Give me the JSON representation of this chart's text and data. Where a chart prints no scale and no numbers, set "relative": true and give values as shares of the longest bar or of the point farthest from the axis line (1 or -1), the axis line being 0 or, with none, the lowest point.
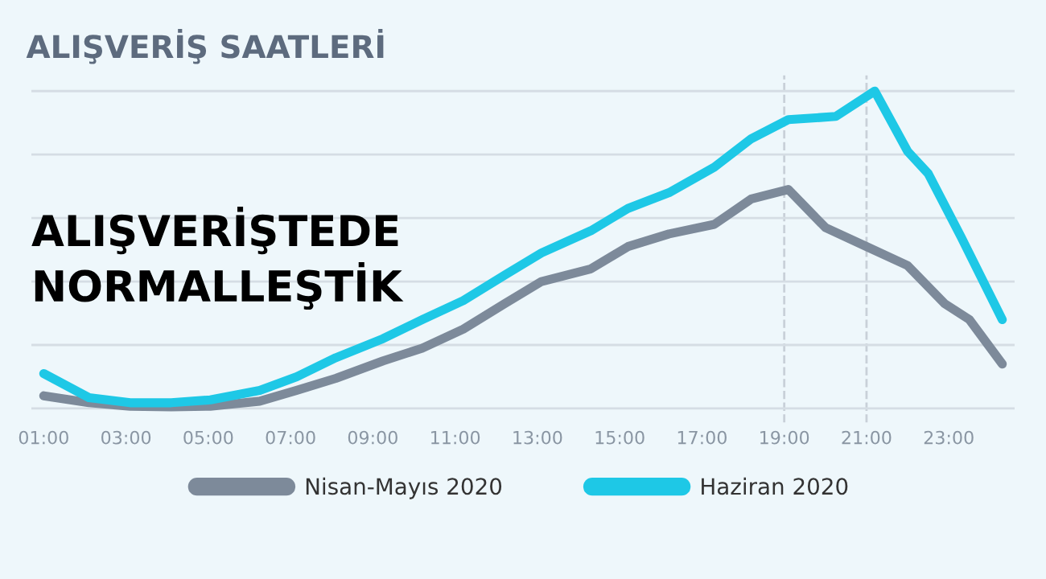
{
  "chart_data": {
    "type": "line",
    "title": "ALIŞVERİŞ SAATLERİ",
    "relative": true,
    "x": [
      1.0,
      2.1,
      3.1,
      4.1,
      5.05,
      6.25,
      7.15,
      8.1,
      9.25,
      10.2,
      11.2,
      12.2,
      13.1,
      14.3,
      15.2,
      16.2,
      17.3,
      18.2,
      19.1,
      20.25,
      21.2,
      22.0,
      22.5,
      23.3,
      24.3
    ],
    "series": [
      {
        "name": "Nisan-Mayıs 2020",
        "color": "#7d8a9a",
        "x": [
          1.0,
          2.1,
          3.1,
          4.1,
          5.05,
          6.25,
          7.15,
          8.1,
          9.25,
          10.2,
          11.2,
          12.2,
          13.1,
          14.3,
          15.2,
          16.2,
          17.3,
          18.2,
          19.1,
          20.0,
          21.0,
          22.0,
          22.9,
          23.5,
          24.3
        ],
        "values": [
          0.04,
          0.018,
          0.007,
          0.005,
          0.007,
          0.023,
          0.057,
          0.095,
          0.15,
          0.19,
          0.25,
          0.33,
          0.4,
          0.44,
          0.51,
          0.55,
          0.58,
          0.66,
          0.69,
          0.57,
          0.51,
          0.45,
          0.33,
          0.28,
          0.14
        ]
      },
      {
        "name": "Haziran 2020",
        "color": "#1ec8e6",
        "values": [
          0.11,
          0.034,
          0.018,
          0.018,
          0.027,
          0.057,
          0.1,
          0.16,
          0.22,
          0.28,
          0.34,
          0.42,
          0.49,
          0.56,
          0.63,
          0.68,
          0.76,
          0.85,
          0.91,
          0.92,
          1.0,
          0.81,
          0.74,
          0.54,
          0.28
        ]
      }
    ],
    "xlim": [
      0.7,
      24.6
    ],
    "xticks": [
      {
        "value": 1,
        "label": "01:00"
      },
      {
        "value": 3,
        "label": "03:00"
      },
      {
        "value": 5,
        "label": "05:00"
      },
      {
        "value": 7,
        "label": "07:00"
      },
      {
        "value": 9,
        "label": "09:00"
      },
      {
        "value": 11,
        "label": "11:00"
      },
      {
        "value": 13,
        "label": "13:00"
      },
      {
        "value": 15,
        "label": "15:00"
      },
      {
        "value": 17,
        "label": "17:00"
      },
      {
        "value": 19,
        "label": "19:00"
      },
      {
        "value": 21,
        "label": "21:00"
      },
      {
        "value": 23,
        "label": "23:00"
      }
    ],
    "ref_lines": [
      {
        "axis": "x",
        "value": 19,
        "line_style": "dashed",
        "color": "#c8d0d8"
      },
      {
        "axis": "x",
        "value": 21,
        "line_style": "dashed",
        "color": "#c8d0d8"
      }
    ],
    "annotations": [
      "ALIŞVERİŞTEDE\nNORMALLEŞTİK"
    ],
    "grid": "y",
    "legend": "bottom",
    "tick_labels": "x",
    "marker": "none",
    "line_style": "solid"
  }
}
